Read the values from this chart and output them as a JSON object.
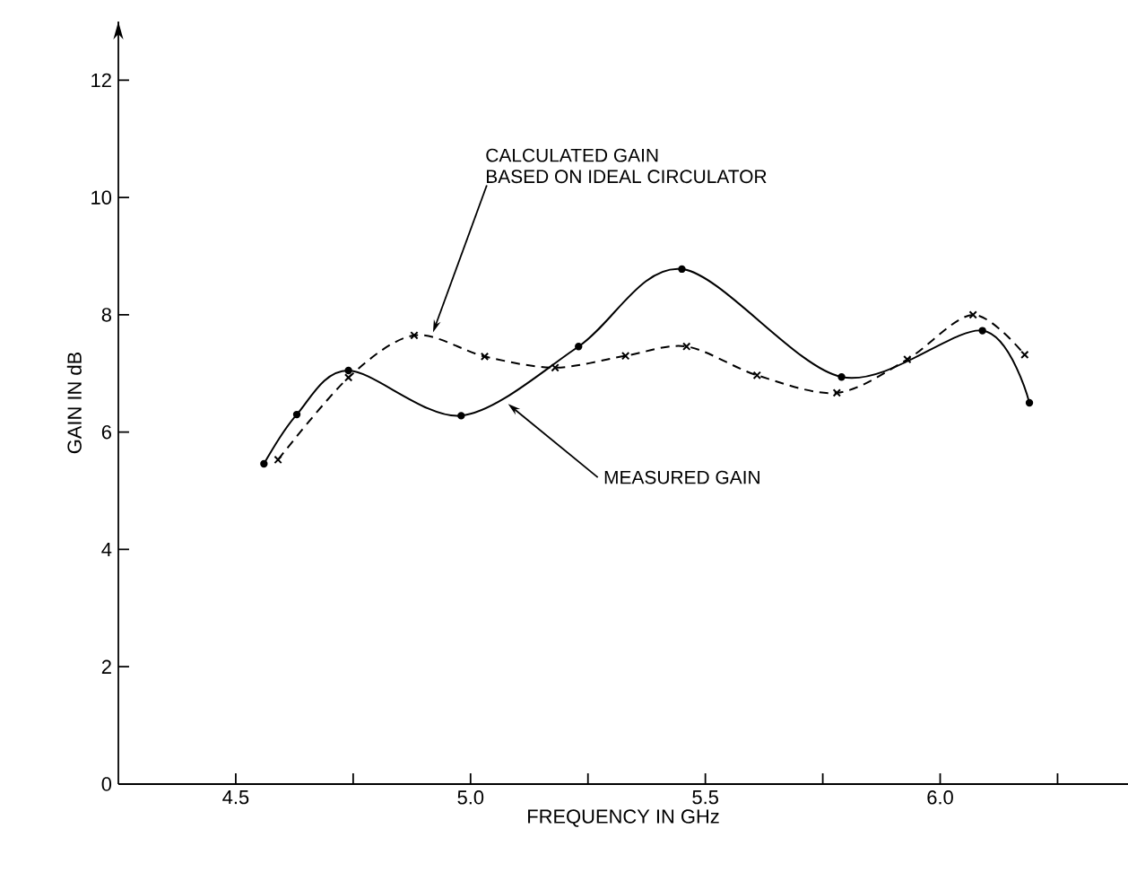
{
  "chart_data": {
    "type": "line",
    "xlabel": "FREQUENCY IN GHz",
    "ylabel": "GAIN IN dB",
    "xlim": [
      4.25,
      6.4
    ],
    "ylim": [
      0,
      13
    ],
    "xticks": [
      4.5,
      {
        "value": 4.75,
        "label": null
      },
      {
        "value": 5,
        "label": "5.0"
      },
      {
        "value": 5.25,
        "label": null
      },
      5.5,
      {
        "value": 5.75,
        "label": null
      },
      {
        "value": 6,
        "label": "6.0"
      },
      {
        "value": 6.25,
        "label": null
      }
    ],
    "yticks": [
      0,
      2,
      4,
      6,
      8,
      10,
      12
    ],
    "series": [
      {
        "color": "#000000",
        "marker": "circle",
        "line_style": "solid",
        "x": [
          4.56,
          4.63,
          4.74,
          4.98,
          5.23,
          5.45,
          5.79,
          6.09,
          6.19
        ],
        "values": [
          5.46,
          6.3,
          7.05,
          6.28,
          7.46,
          8.78,
          6.94,
          7.73,
          6.5
        ]
      },
      {
        "color": "#000000",
        "marker": "cross",
        "line_style": "dashed",
        "x": [
          4.59,
          4.74,
          4.88,
          5.03,
          5.18,
          5.33,
          5.46,
          5.61,
          5.78,
          5.93,
          6.07,
          6.18
        ],
        "values": [
          5.53,
          6.93,
          7.65,
          7.29,
          7.1,
          7.3,
          7.46,
          6.97,
          6.67,
          7.24,
          8.0,
          7.32
        ]
      }
    ],
    "annotations": [
      "CALCULATED GAIN",
      {
        "text": "BASED ON IDEAL CIRCULATOR",
        "x": 4.92,
        "y": 7.7
      },
      {
        "text": "MEASURED GAIN",
        "x": 5.08,
        "y": 6.48
      }
    ]
  }
}
